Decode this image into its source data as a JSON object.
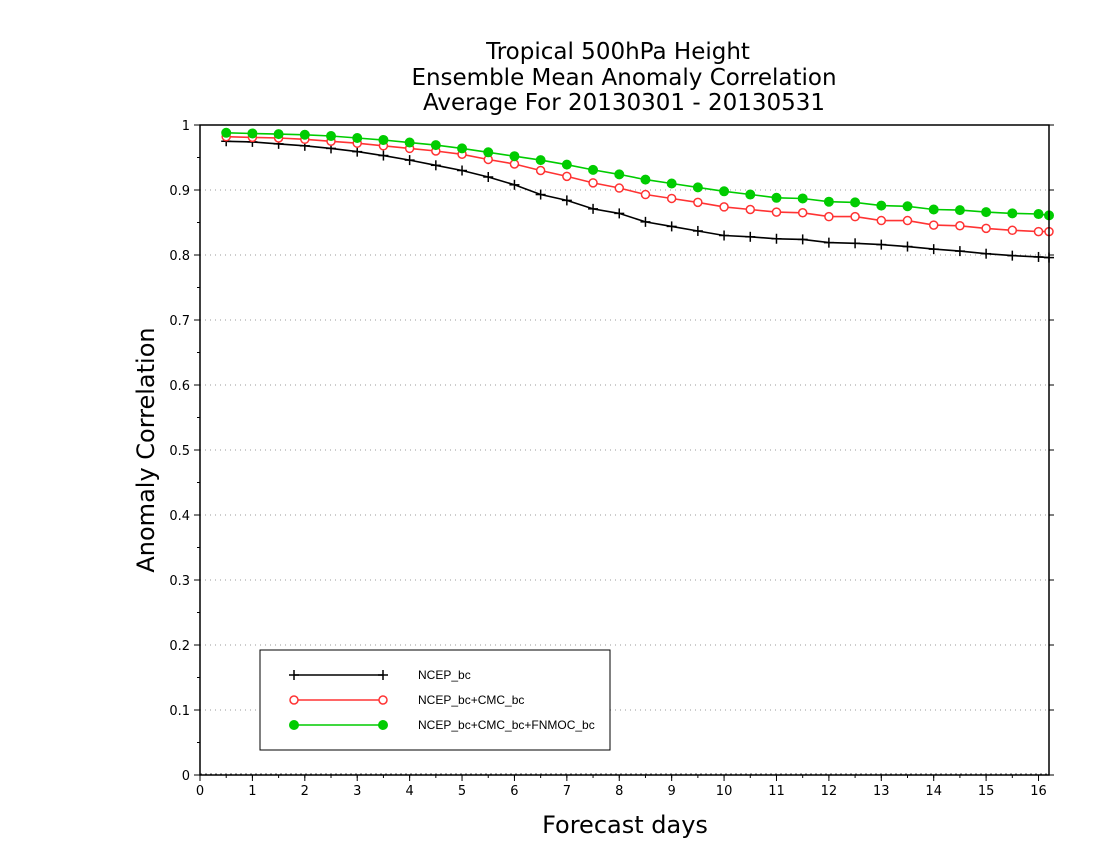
{
  "chart_data": {
    "type": "line",
    "title_lines": [
      "Tropical 500hPa Height",
      "Ensemble Mean Anomaly Correlation",
      "Average For 20130301 - 20130531"
    ],
    "xlabel": "Forecast days",
    "ylabel": "Anomaly Correlation",
    "xlim": [
      0,
      16.2
    ],
    "ylim": [
      0,
      1
    ],
    "xticks": [
      0,
      1,
      2,
      3,
      4,
      5,
      6,
      7,
      8,
      9,
      10,
      11,
      12,
      13,
      14,
      15,
      16
    ],
    "yticks": [
      0,
      0.1,
      0.2,
      0.3,
      0.4,
      0.5,
      0.6,
      0.7,
      0.8,
      0.9,
      1
    ],
    "xtick_labels": [
      "0",
      "1",
      "2",
      "3",
      "4",
      "5",
      "6",
      "7",
      "8",
      "9",
      "10",
      "11",
      "12",
      "13",
      "14",
      "15",
      "16"
    ],
    "ytick_labels": [
      "0",
      "0.1",
      "0.2",
      "0.3",
      "0.4",
      "0.5",
      "0.6",
      "0.7",
      "0.8",
      "0.9",
      "1"
    ],
    "grid": "horizontal dotted",
    "legend_position": "bottom-left",
    "x": [
      0.5,
      1,
      1.5,
      2,
      2.5,
      3,
      3.5,
      4,
      4.5,
      5,
      5.5,
      6,
      6.5,
      7,
      7.5,
      8,
      8.5,
      9,
      9.5,
      10,
      10.5,
      11,
      11.5,
      12,
      12.5,
      13,
      13.5,
      14,
      14.5,
      15,
      15.5,
      16,
      16.2
    ],
    "series": [
      {
        "name": "NCEP_bc",
        "color": "#000000",
        "marker": "plus",
        "values": [
          0.975,
          0.974,
          0.971,
          0.968,
          0.964,
          0.959,
          0.953,
          0.946,
          0.938,
          0.93,
          0.92,
          0.908,
          0.893,
          0.884,
          0.871,
          0.864,
          0.851,
          0.844,
          0.837,
          0.83,
          0.828,
          0.825,
          0.824,
          0.819,
          0.818,
          0.816,
          0.813,
          0.809,
          0.806,
          0.802,
          0.799,
          0.797,
          0.796
        ]
      },
      {
        "name": "NCEP_bc+CMC_bc",
        "color": "#ff3333",
        "marker": "open-circle",
        "values": [
          0.982,
          0.981,
          0.98,
          0.978,
          0.975,
          0.972,
          0.968,
          0.964,
          0.96,
          0.955,
          0.947,
          0.94,
          0.93,
          0.921,
          0.911,
          0.903,
          0.893,
          0.887,
          0.881,
          0.874,
          0.87,
          0.866,
          0.865,
          0.859,
          0.859,
          0.853,
          0.853,
          0.846,
          0.845,
          0.841,
          0.838,
          0.836,
          0.836
        ]
      },
      {
        "name": "NCEP_bc+CMC_bc+FNMOC_bc",
        "color": "#00cc00",
        "marker": "filled-circle",
        "values": [
          0.988,
          0.987,
          0.986,
          0.985,
          0.983,
          0.98,
          0.977,
          0.973,
          0.969,
          0.964,
          0.958,
          0.952,
          0.946,
          0.939,
          0.931,
          0.924,
          0.916,
          0.91,
          0.904,
          0.898,
          0.893,
          0.888,
          0.887,
          0.882,
          0.881,
          0.876,
          0.875,
          0.87,
          0.869,
          0.866,
          0.864,
          0.863,
          0.861
        ]
      }
    ]
  }
}
